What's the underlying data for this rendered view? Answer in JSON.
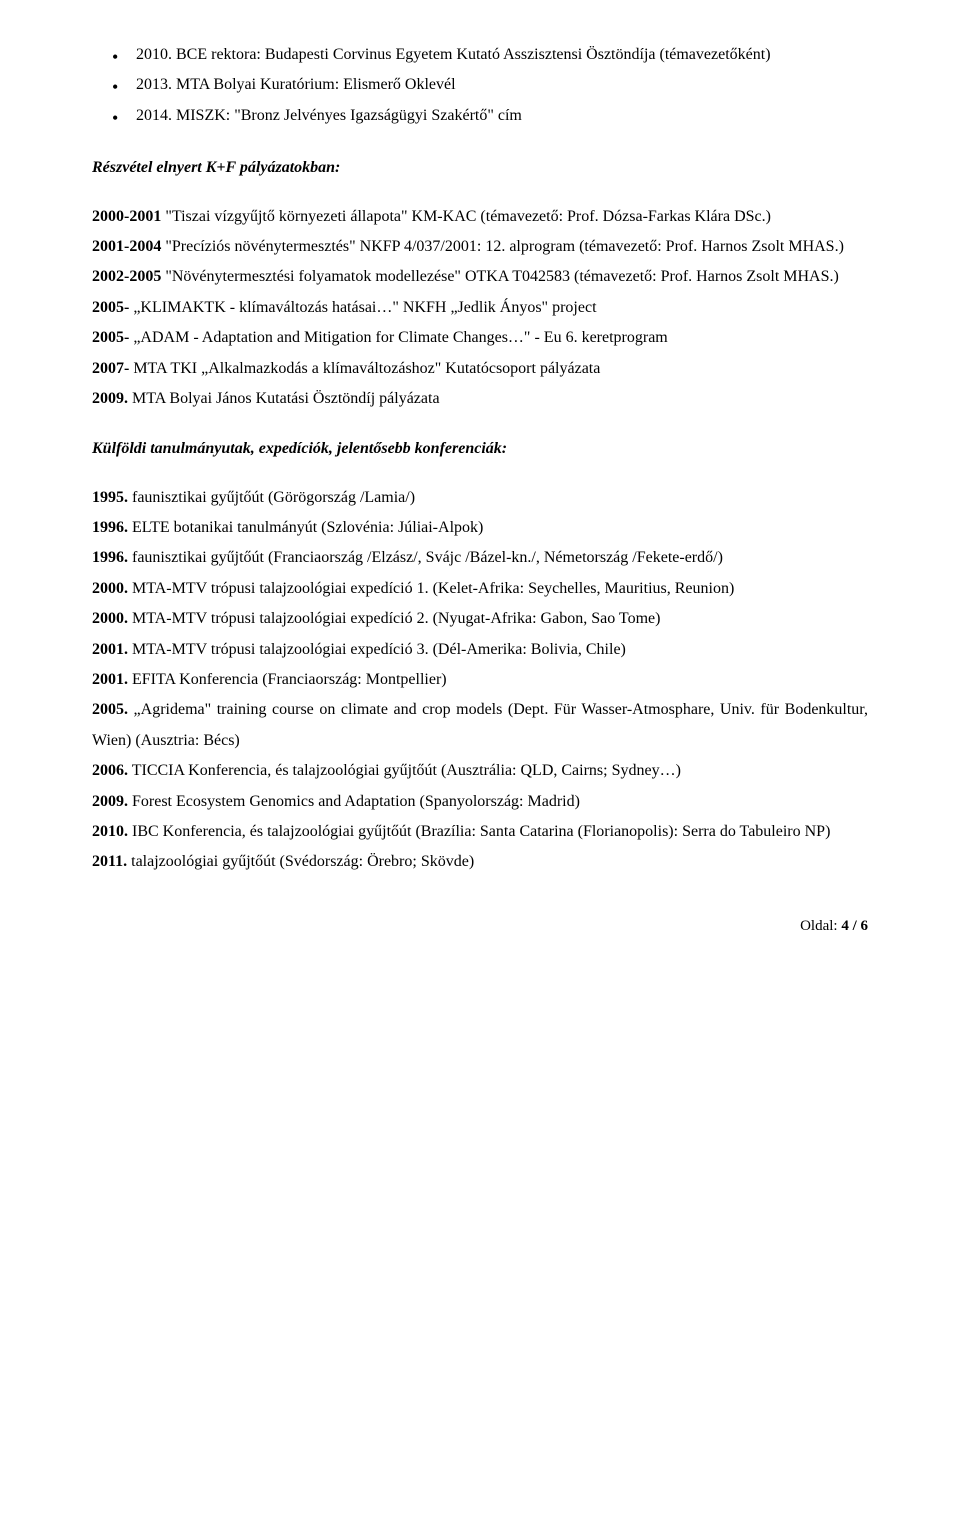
{
  "awards": [
    {
      "year": "2010.",
      "text": " BCE rektora: Budapesti Corvinus Egyetem Kutató Asszisztensi Ösztöndíja (témavezetőként)"
    },
    {
      "year": "2013.",
      "text": " MTA Bolyai Kuratórium: Elismerő Oklevél"
    },
    {
      "year": "2014.",
      "text": " MISZK: \"Bronz Jelvényes Igazságügyi Szakértő\" cím"
    }
  ],
  "section1": {
    "heading": "Részvétel elnyert K+F pályázatokban:",
    "items": [
      {
        "lead": "2000-2001",
        "body": " \"Tiszai vízgyűjtő környezeti állapota\" KM-KAC (témavezető: Prof. Dózsa-Farkas Klára DSc.)"
      },
      {
        "lead": "2001-2004",
        "body": " \"Precíziós növénytermesztés\" NKFP 4/037/2001: 12. alprogram (témavezető: Prof. Harnos Zsolt MHAS.)"
      },
      {
        "lead": "2002-2005",
        "body": " \"Növénytermesztési folyamatok modellezése\" OTKA T042583 (témavezető: Prof. Harnos Zsolt MHAS.)"
      },
      {
        "lead": "2005-",
        "body": " „KLIMAKTK - klímaváltozás hatásai…\" NKFH „Jedlik Ányos\" project"
      },
      {
        "lead": "2005-",
        "body": " „ADAM - Adaptation and Mitigation for Climate Changes…\" - Eu 6. keretprogram"
      },
      {
        "lead": "2007-",
        "body": " MTA TKI „Alkalmazkodás a klímaváltozáshoz\" Kutatócsoport pályázata"
      },
      {
        "lead": "2009.",
        "body": " MTA Bolyai János Kutatási Ösztöndíj pályázata"
      }
    ]
  },
  "section2": {
    "heading": "Külföldi tanulmányutak, expedíciók, jelentősebb konferenciák:",
    "items": [
      {
        "lead": "1995.",
        "body": " faunisztikai gyűjtőút (Görögország /Lamia/)"
      },
      {
        "lead": "1996.",
        "body": " ELTE botanikai tanulmányút (Szlovénia: Júliai-Alpok)"
      },
      {
        "lead": "1996.",
        "body": " faunisztikai gyűjtőút (Franciaország /Elzász/, Svájc /Bázel-kn./, Németország /Fekete-erdő/)"
      },
      {
        "lead": "2000.",
        "body": " MTA-MTV trópusi talajzoológiai expedíció 1. (Kelet-Afrika: Seychelles, Mauritius, Reunion)"
      },
      {
        "lead": "2000.",
        "body": " MTA-MTV trópusi talajzoológiai expedíció 2. (Nyugat-Afrika: Gabon, Sao Tome)"
      },
      {
        "lead": "2001.",
        "body": " MTA-MTV trópusi talajzoológiai expedíció 3. (Dél-Amerika: Bolivia, Chile)"
      },
      {
        "lead": "2001.",
        "body": " EFITA Konferencia (Franciaország: Montpellier)"
      },
      {
        "lead": "2005.",
        "body": " „Agridema\" training course on climate and crop models (Dept. Für Wasser-Atmosphare, Univ. für Bodenkultur, Wien) (Ausztria: Bécs)"
      },
      {
        "lead": "2006.",
        "body": " TICCIA Konferencia, és talajzoológiai gyűjtőút (Ausztrália: QLD, Cairns; Sydney…)"
      },
      {
        "lead": "2009.",
        "body": " Forest Ecosystem Genomics and Adaptation (Spanyolország: Madrid)"
      },
      {
        "lead": "2010.",
        "body": " IBC Konferencia, és talajzoológiai gyűjtőút (Brazília: Santa Catarina (Florianopolis): Serra do Tabuleiro NP)"
      },
      {
        "lead": "2011.",
        "body": " talajzoológiai gyűjtőút (Svédország: Örebro; Skövde)"
      }
    ]
  },
  "footer": {
    "label": "Oldal: ",
    "page": "4 / 6"
  }
}
